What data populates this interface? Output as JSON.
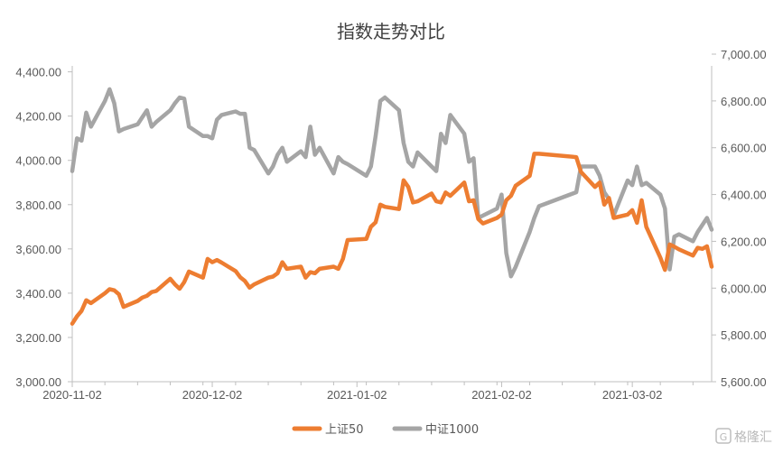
{
  "chart_data": {
    "type": "line",
    "title": "指数走势对比",
    "x_ticks": [
      "2020-11-02",
      "2020-12-02",
      "2021-01-02",
      "2021-02-02",
      "2021-03-02"
    ],
    "y_left": {
      "ticks": [
        "3,000.00",
        "3,200.00",
        "3,400.00",
        "3,600.00",
        "3,800.00",
        "4,000.00",
        "4,200.00",
        "4,400.00"
      ],
      "range": [
        3000,
        4480
      ]
    },
    "y_right": {
      "ticks": [
        "5,600.00",
        "5,800.00",
        "6,000.00",
        "6,200.00",
        "6,400.00",
        "6,600.00",
        "6,800.00",
        "7,000.00"
      ],
      "range": [
        5600,
        7000
      ]
    },
    "legend_position": "bottom",
    "series": [
      {
        "name": "上证50",
        "color": "#ED7D31",
        "axis": "left",
        "points": [
          [
            "2020-11-02",
            3262
          ],
          [
            "2020-11-03",
            3295
          ],
          [
            "2020-11-04",
            3320
          ],
          [
            "2020-11-05",
            3368
          ],
          [
            "2020-11-06",
            3355
          ],
          [
            "2020-11-09",
            3400
          ],
          [
            "2020-11-10",
            3418
          ],
          [
            "2020-11-11",
            3413
          ],
          [
            "2020-11-12",
            3395
          ],
          [
            "2020-11-13",
            3338
          ],
          [
            "2020-11-16",
            3365
          ],
          [
            "2020-11-17",
            3380
          ],
          [
            "2020-11-18",
            3388
          ],
          [
            "2020-11-19",
            3405
          ],
          [
            "2020-11-20",
            3410
          ],
          [
            "2020-11-23",
            3465
          ],
          [
            "2020-11-24",
            3440
          ],
          [
            "2020-11-25",
            3420
          ],
          [
            "2020-11-26",
            3450
          ],
          [
            "2020-11-27",
            3498
          ],
          [
            "2020-11-30",
            3470
          ],
          [
            "2020-12-01",
            3555
          ],
          [
            "2020-12-02",
            3540
          ],
          [
            "2020-12-03",
            3550
          ],
          [
            "2020-12-04",
            3538
          ],
          [
            "2020-12-07",
            3500
          ],
          [
            "2020-12-08",
            3472
          ],
          [
            "2020-12-09",
            3455
          ],
          [
            "2020-12-10",
            3425
          ],
          [
            "2020-12-11",
            3440
          ],
          [
            "2020-12-14",
            3470
          ],
          [
            "2020-12-15",
            3475
          ],
          [
            "2020-12-16",
            3490
          ],
          [
            "2020-12-17",
            3540
          ],
          [
            "2020-12-18",
            3510
          ],
          [
            "2020-12-21",
            3520
          ],
          [
            "2020-12-22",
            3470
          ],
          [
            "2020-12-23",
            3495
          ],
          [
            "2020-12-24",
            3490
          ],
          [
            "2020-12-25",
            3510
          ],
          [
            "2020-12-28",
            3520
          ],
          [
            "2020-12-29",
            3510
          ],
          [
            "2020-12-30",
            3555
          ],
          [
            "2020-12-31",
            3640
          ],
          [
            "2021-01-04",
            3645
          ],
          [
            "2021-01-05",
            3700
          ],
          [
            "2021-01-06",
            3720
          ],
          [
            "2021-01-07",
            3800
          ],
          [
            "2021-01-08",
            3790
          ],
          [
            "2021-01-11",
            3780
          ],
          [
            "2021-01-12",
            3910
          ],
          [
            "2021-01-13",
            3880
          ],
          [
            "2021-01-14",
            3810
          ],
          [
            "2021-01-15",
            3815
          ],
          [
            "2021-01-18",
            3850
          ],
          [
            "2021-01-19",
            3815
          ],
          [
            "2021-01-20",
            3810
          ],
          [
            "2021-01-21",
            3855
          ],
          [
            "2021-01-22",
            3840
          ],
          [
            "2021-01-25",
            3900
          ],
          [
            "2021-01-26",
            3815
          ],
          [
            "2021-01-27",
            3820
          ],
          [
            "2021-01-28",
            3735
          ],
          [
            "2021-01-29",
            3715
          ],
          [
            "2021-02-01",
            3740
          ],
          [
            "2021-02-02",
            3755
          ],
          [
            "2021-02-03",
            3820
          ],
          [
            "2021-02-04",
            3840
          ],
          [
            "2021-02-05",
            3885
          ],
          [
            "2021-02-08",
            3930
          ],
          [
            "2021-02-09",
            4030
          ],
          [
            "2021-02-10",
            4030
          ],
          [
            "2021-02-18",
            4015
          ],
          [
            "2021-02-19",
            3948
          ],
          [
            "2021-02-22",
            3880
          ],
          [
            "2021-02-23",
            3900
          ],
          [
            "2021-02-24",
            3800
          ],
          [
            "2021-02-25",
            3830
          ],
          [
            "2021-02-26",
            3740
          ],
          [
            "2021-03-01",
            3755
          ],
          [
            "2021-03-02",
            3775
          ],
          [
            "2021-03-03",
            3718
          ],
          [
            "2021-03-04",
            3820
          ],
          [
            "2021-03-05",
            3700
          ],
          [
            "2021-03-08",
            3560
          ],
          [
            "2021-03-09",
            3505
          ],
          [
            "2021-03-10",
            3620
          ],
          [
            "2021-03-11",
            3610
          ],
          [
            "2021-03-12",
            3598
          ],
          [
            "2021-03-15",
            3570
          ],
          [
            "2021-03-16",
            3605
          ],
          [
            "2021-03-17",
            3600
          ],
          [
            "2021-03-18",
            3612
          ],
          [
            "2021-03-19",
            3520
          ]
        ]
      },
      {
        "name": "中证1000",
        "color": "#A5A5A5",
        "axis": "right",
        "points": [
          [
            "2020-11-02",
            6500
          ],
          [
            "2020-11-03",
            6640
          ],
          [
            "2020-11-04",
            6630
          ],
          [
            "2020-11-05",
            6750
          ],
          [
            "2020-11-06",
            6690
          ],
          [
            "2020-11-09",
            6800
          ],
          [
            "2020-11-10",
            6850
          ],
          [
            "2020-11-11",
            6790
          ],
          [
            "2020-11-12",
            6670
          ],
          [
            "2020-11-13",
            6680
          ],
          [
            "2020-11-16",
            6700
          ],
          [
            "2020-11-17",
            6730
          ],
          [
            "2020-11-18",
            6760
          ],
          [
            "2020-11-19",
            6690
          ],
          [
            "2020-11-20",
            6710
          ],
          [
            "2020-11-23",
            6760
          ],
          [
            "2020-11-24",
            6790
          ],
          [
            "2020-11-25",
            6815
          ],
          [
            "2020-11-26",
            6810
          ],
          [
            "2020-11-27",
            6690
          ],
          [
            "2020-11-30",
            6650
          ],
          [
            "2020-12-01",
            6650
          ],
          [
            "2020-12-02",
            6640
          ],
          [
            "2020-12-03",
            6720
          ],
          [
            "2020-12-04",
            6740
          ],
          [
            "2020-12-07",
            6755
          ],
          [
            "2020-12-08",
            6745
          ],
          [
            "2020-12-09",
            6745
          ],
          [
            "2020-12-10",
            6600
          ],
          [
            "2020-12-11",
            6590
          ],
          [
            "2020-12-14",
            6490
          ],
          [
            "2020-12-15",
            6520
          ],
          [
            "2020-12-16",
            6570
          ],
          [
            "2020-12-17",
            6600
          ],
          [
            "2020-12-18",
            6540
          ],
          [
            "2020-12-21",
            6585
          ],
          [
            "2020-12-22",
            6560
          ],
          [
            "2020-12-23",
            6690
          ],
          [
            "2020-12-24",
            6570
          ],
          [
            "2020-12-25",
            6600
          ],
          [
            "2020-12-28",
            6490
          ],
          [
            "2020-12-29",
            6560
          ],
          [
            "2020-12-30",
            6540
          ],
          [
            "2020-12-31",
            6530
          ],
          [
            "2021-01-04",
            6480
          ],
          [
            "2021-01-05",
            6520
          ],
          [
            "2021-01-06",
            6650
          ],
          [
            "2021-01-07",
            6800
          ],
          [
            "2021-01-08",
            6815
          ],
          [
            "2021-01-11",
            6760
          ],
          [
            "2021-01-12",
            6620
          ],
          [
            "2021-01-13",
            6540
          ],
          [
            "2021-01-14",
            6520
          ],
          [
            "2021-01-15",
            6580
          ],
          [
            "2021-01-18",
            6520
          ],
          [
            "2021-01-19",
            6500
          ],
          [
            "2021-01-20",
            6660
          ],
          [
            "2021-01-21",
            6620
          ],
          [
            "2021-01-22",
            6740
          ],
          [
            "2021-01-25",
            6660
          ],
          [
            "2021-01-26",
            6540
          ],
          [
            "2021-01-27",
            6555
          ],
          [
            "2021-01-28",
            6300
          ],
          [
            "2021-01-29",
            6310
          ],
          [
            "2021-02-01",
            6340
          ],
          [
            "2021-02-02",
            6400
          ],
          [
            "2021-02-03",
            6150
          ],
          [
            "2021-02-04",
            6050
          ],
          [
            "2021-02-05",
            6090
          ],
          [
            "2021-02-08",
            6240
          ],
          [
            "2021-02-09",
            6300
          ],
          [
            "2021-02-10",
            6350
          ],
          [
            "2021-02-18",
            6410
          ],
          [
            "2021-02-19",
            6520
          ],
          [
            "2021-02-22",
            6520
          ],
          [
            "2021-02-23",
            6480
          ],
          [
            "2021-02-24",
            6410
          ],
          [
            "2021-02-25",
            6380
          ],
          [
            "2021-02-26",
            6310
          ],
          [
            "2021-03-01",
            6460
          ],
          [
            "2021-03-02",
            6440
          ],
          [
            "2021-03-03",
            6520
          ],
          [
            "2021-03-04",
            6440
          ],
          [
            "2021-03-05",
            6450
          ],
          [
            "2021-03-08",
            6400
          ],
          [
            "2021-03-09",
            6340
          ],
          [
            "2021-03-10",
            6080
          ],
          [
            "2021-03-11",
            6220
          ],
          [
            "2021-03-12",
            6230
          ],
          [
            "2021-03-15",
            6200
          ],
          [
            "2021-03-16",
            6240
          ],
          [
            "2021-03-17",
            6270
          ],
          [
            "2021-03-18",
            6300
          ],
          [
            "2021-03-19",
            6250
          ]
        ]
      }
    ]
  },
  "watermark": {
    "glyph": "G",
    "text": "格隆汇"
  }
}
